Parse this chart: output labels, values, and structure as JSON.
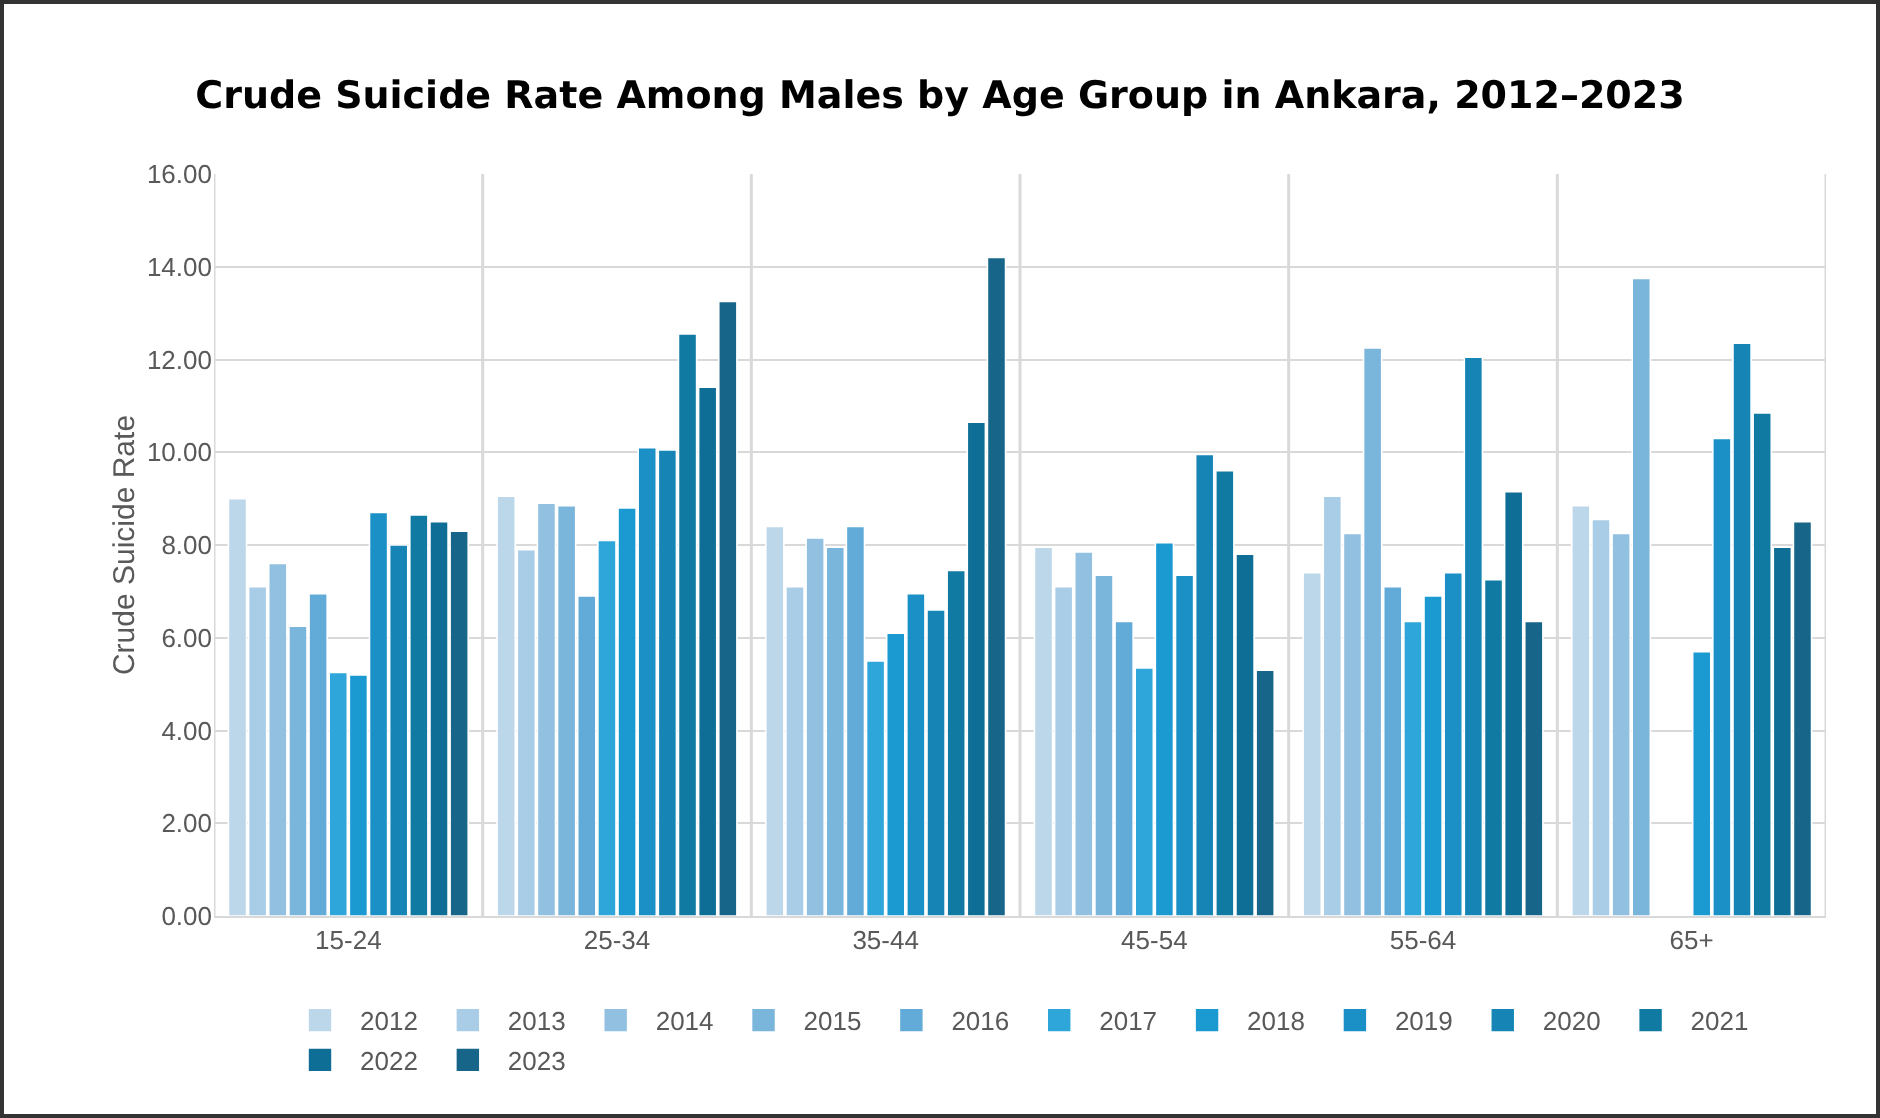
{
  "chart_data": {
    "type": "bar",
    "title": "Crude Suicide Rate Among Males by Age Group in Ankara, 2012–2023",
    "ylabel": "Crude Suicide Rate",
    "categories": [
      "15-24",
      "25-34",
      "35-44",
      "45-54",
      "55-64",
      "65+"
    ],
    "series": [
      {
        "name": "2012",
        "color": "#bdd7ea",
        "values": [
          9.0,
          9.05,
          8.4,
          7.95,
          7.4,
          8.85
        ]
      },
      {
        "name": "2013",
        "color": "#a9cde6",
        "values": [
          7.1,
          7.9,
          7.1,
          7.1,
          9.05,
          8.55
        ]
      },
      {
        "name": "2014",
        "color": "#92c0e0",
        "values": [
          7.6,
          8.9,
          8.15,
          7.85,
          8.25,
          8.25
        ]
      },
      {
        "name": "2015",
        "color": "#7ab5dc",
        "values": [
          6.25,
          8.85,
          7.95,
          7.35,
          12.25,
          13.75
        ]
      },
      {
        "name": "2016",
        "color": "#62abd8",
        "values": [
          6.95,
          6.9,
          8.4,
          6.35,
          7.1,
          null
        ]
      },
      {
        "name": "2017",
        "color": "#2fa6d9",
        "values": [
          5.25,
          8.1,
          5.5,
          5.35,
          6.35,
          null
        ]
      },
      {
        "name": "2018",
        "color": "#1b9ad2",
        "values": [
          5.2,
          8.8,
          6.1,
          8.05,
          6.9,
          5.7
        ]
      },
      {
        "name": "2019",
        "color": "#1a90c6",
        "values": [
          8.7,
          10.1,
          6.95,
          7.35,
          7.4,
          10.3
        ]
      },
      {
        "name": "2020",
        "color": "#1685b6",
        "values": [
          8.0,
          10.05,
          6.6,
          9.95,
          12.05,
          12.35
        ]
      },
      {
        "name": "2021",
        "color": "#107aa3",
        "values": [
          8.65,
          12.55,
          7.45,
          9.6,
          7.25,
          10.85
        ]
      },
      {
        "name": "2022",
        "color": "#0f6e96",
        "values": [
          8.5,
          11.4,
          10.65,
          7.8,
          9.15,
          7.95
        ]
      },
      {
        "name": "2023",
        "color": "#17668a",
        "values": [
          8.3,
          13.25,
          14.2,
          5.3,
          6.35,
          8.5
        ]
      }
    ],
    "ylim": [
      0,
      16
    ],
    "yticks": [
      {
        "value": 0,
        "label": "0.00"
      },
      {
        "value": 2,
        "label": "2.00"
      },
      {
        "value": 4,
        "label": "4.00"
      },
      {
        "value": 6,
        "label": "6.00"
      },
      {
        "value": 8,
        "label": "8.00"
      },
      {
        "value": 10,
        "label": "10.00"
      },
      {
        "value": 12,
        "label": "12.00"
      },
      {
        "value": 14,
        "label": "14.00"
      },
      {
        "value": 16,
        "label": "16.00"
      }
    ],
    "grid": true,
    "legend": "bottom"
  }
}
